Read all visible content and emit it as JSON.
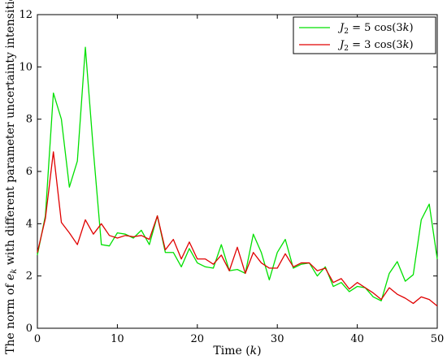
{
  "chart_data": {
    "type": "line",
    "xlabel": "Time (k)",
    "ylabel": "The norm of e_k with different parameter uncertainty intensities",
    "xlim": [
      0,
      50
    ],
    "ylim": [
      0,
      12
    ],
    "x_ticks": [
      0,
      10,
      20,
      30,
      40,
      50
    ],
    "y_ticks": [
      0,
      2,
      4,
      6,
      8,
      10,
      12
    ],
    "grid": false,
    "legend_position": "top-right",
    "x": [
      0,
      1,
      2,
      3,
      4,
      5,
      6,
      7,
      8,
      9,
      10,
      11,
      12,
      13,
      14,
      15,
      16,
      17,
      18,
      19,
      20,
      21,
      22,
      23,
      24,
      25,
      26,
      27,
      28,
      29,
      30,
      31,
      32,
      33,
      34,
      35,
      36,
      37,
      38,
      39,
      40,
      41,
      42,
      43,
      44,
      45,
      46,
      47,
      48,
      49,
      50
    ],
    "series": [
      {
        "name": "J_2 = 5cos(3k)",
        "color": "#00e000",
        "values": [
          2.8,
          4.3,
          9.0,
          8.0,
          5.4,
          6.4,
          10.75,
          6.8,
          3.2,
          3.15,
          3.65,
          3.6,
          3.45,
          3.75,
          3.2,
          4.3,
          2.9,
          2.9,
          2.35,
          3.05,
          2.5,
          2.35,
          2.3,
          3.2,
          2.2,
          2.25,
          2.1,
          3.6,
          2.9,
          1.85,
          2.9,
          3.4,
          2.3,
          2.45,
          2.5,
          2.0,
          2.35,
          1.6,
          1.75,
          1.4,
          1.6,
          1.55,
          1.2,
          1.05,
          2.1,
          2.55,
          1.8,
          2.05,
          4.15,
          4.75,
          2.65
        ]
      },
      {
        "name": "J_2 = 3cos(3k)",
        "color": "#e00000",
        "values": [
          2.9,
          4.2,
          6.75,
          4.05,
          3.65,
          3.2,
          4.15,
          3.6,
          4.0,
          3.55,
          3.45,
          3.55,
          3.5,
          3.55,
          3.4,
          4.3,
          3.0,
          3.4,
          2.65,
          3.3,
          2.65,
          2.65,
          2.45,
          2.8,
          2.2,
          3.1,
          2.1,
          2.9,
          2.5,
          2.3,
          2.3,
          2.85,
          2.35,
          2.5,
          2.5,
          2.2,
          2.3,
          1.75,
          1.9,
          1.5,
          1.75,
          1.55,
          1.35,
          1.1,
          1.55,
          1.3,
          1.15,
          0.95,
          1.2,
          1.1,
          0.85
        ]
      }
    ]
  }
}
